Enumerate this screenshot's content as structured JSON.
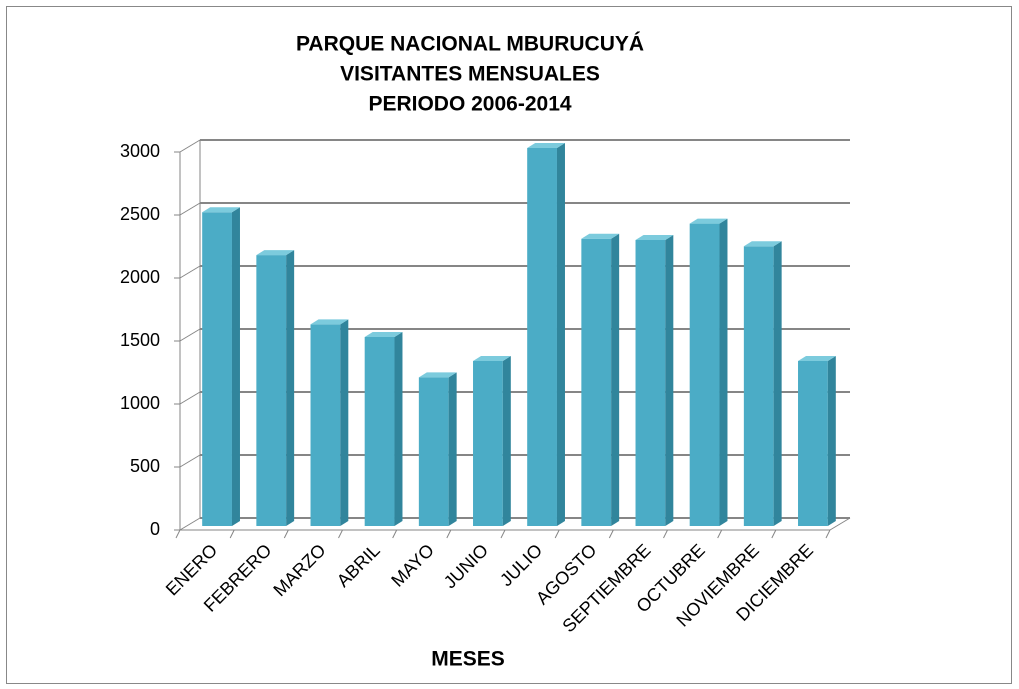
{
  "chart_data": {
    "type": "bar",
    "title": [
      "PARQUE NACIONAL MBURUCUYÁ",
      "VISITANTES MENSUALES",
      "PERIODO 2006-2014"
    ],
    "x_label": "MESES",
    "categories": [
      "ENERO",
      "FEBRERO",
      "MARZO",
      "ABRIL",
      "MAYO",
      "JUNIO",
      "JULIO",
      "AGOSTO",
      "SEPTIEMBRE",
      "OCTUBRE",
      "NOVIEMBRE",
      "DICIEMBRE"
    ],
    "values": [
      2490,
      2150,
      1600,
      1500,
      1180,
      1310,
      3000,
      2280,
      2270,
      2400,
      2220,
      1310
    ],
    "color": "#4bacc6",
    "ylim": [
      0,
      3000
    ],
    "yticks": [
      0,
      500,
      1000,
      1500,
      2000,
      2500,
      3000
    ],
    "grid": true
  }
}
